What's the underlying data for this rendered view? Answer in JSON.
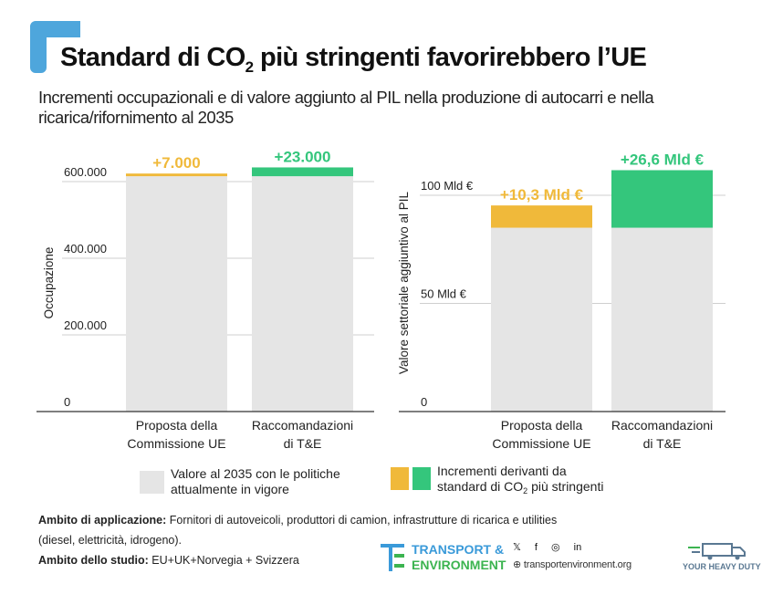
{
  "title": {
    "pre": "Standard di CO",
    "sub": "2",
    "post": " più stringenti favorirebbero l’UE"
  },
  "subtitle": "Incrementi occupazionali e di valore aggiunto al PIL nella produzione di autocarri e nella ricarica/rifornimento al 2035",
  "colors": {
    "base": "#e5e5e5",
    "yellow": "#f0b93a",
    "green": "#34c67c",
    "accent": "#4ea6dc"
  },
  "chart_data": [
    {
      "type": "bar",
      "stacked": true,
      "ylabel": "Occupazione",
      "ylim": [
        0,
        700000
      ],
      "yticks": [
        {
          "v": 0,
          "label": "0"
        },
        {
          "v": 200000,
          "label": "200.000"
        },
        {
          "v": 400000,
          "label": "400.000"
        },
        {
          "v": 600000,
          "label": "600.000"
        }
      ],
      "categories": [
        [
          "Proposta della",
          "Commissione UE"
        ],
        [
          "Raccomandazioni",
          "di T&E"
        ]
      ],
      "base": [
        614000,
        614000
      ],
      "increment": [
        7000,
        23000
      ],
      "increment_colors": [
        "yellow",
        "green"
      ],
      "labels": [
        "+7.000",
        "+23.000"
      ]
    },
    {
      "type": "bar",
      "stacked": true,
      "ylabel": "Valore settoriale aggiuntivo al PIL",
      "ylim": [
        0,
        120
      ],
      "yticks": [
        {
          "v": 0,
          "label": "0"
        },
        {
          "v": 50,
          "label": "50 Mld €"
        },
        {
          "v": 100,
          "label": "100 Mld €"
        }
      ],
      "categories": [
        [
          "Proposta della",
          "Commissione UE"
        ],
        [
          "Raccomandazioni",
          "di T&E"
        ]
      ],
      "base": [
        85,
        85
      ],
      "increment": [
        10.3,
        26.6
      ],
      "increment_colors": [
        "yellow",
        "green"
      ],
      "labels": [
        "+10,3 Mld €",
        "+26,6 Mld €"
      ]
    }
  ],
  "legend": {
    "base": [
      "Valore al 2035 con le politiche",
      "attualmente in vigore"
    ],
    "increment": [
      "Incrementi derivanti da",
      "standard di CO",
      "2",
      " più stringenti"
    ]
  },
  "notes": {
    "scope_label": "Ambito di applicazione:",
    "scope_text": " Fornitori di autoveicoli, produttori di camion, infrastrutture di ricarica e utilities",
    "scope_text2": "(diesel, elettricità, idrogeno).",
    "study_label": "Ambito dello studio:",
    "study_text": " EU+UK+Norvegia + Svizzera"
  },
  "footer": {
    "logo_line1": "TRANSPORT &",
    "logo_line2": "ENVIRONMENT",
    "social": "𝕏 f ◎ in",
    "website": "⊕ transportenvironment.org",
    "campaign": "YOUR HEAVY DUTY"
  }
}
